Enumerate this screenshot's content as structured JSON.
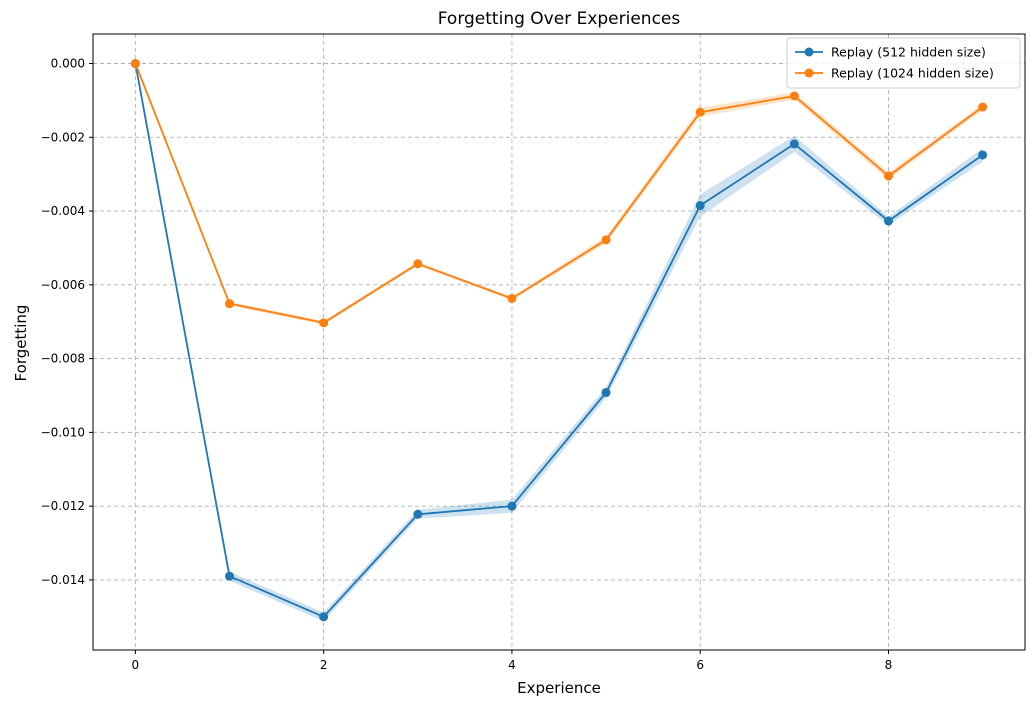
{
  "chart_data": {
    "type": "line",
    "title": "Forgetting Over Experiences",
    "xlabel": "Experience",
    "ylabel": "Forgetting",
    "x": [
      0,
      1,
      2,
      3,
      4,
      5,
      6,
      7,
      8,
      9
    ],
    "xlim": [
      -0.45,
      9.45
    ],
    "ylim": [
      -0.0159,
      0.0008
    ],
    "xticks": [
      0,
      2,
      4,
      6,
      8
    ],
    "xtick_labels": [
      "0",
      "2",
      "4",
      "6",
      "8"
    ],
    "yticks": [
      0,
      -0.002,
      -0.004,
      -0.006,
      -0.008,
      -0.01,
      -0.012,
      -0.014
    ],
    "ytick_labels": [
      "0.000",
      "−0.002",
      "−0.004",
      "−0.006",
      "−0.008",
      "−0.010",
      "−0.012",
      "−0.014"
    ],
    "grid": true,
    "legend_position": "top-right",
    "series": [
      {
        "name": "Replay (512 hidden size)",
        "color": "#1f77b4",
        "values": [
          0.0,
          -0.0139,
          -0.015,
          -0.01222,
          -0.012,
          -0.00892,
          -0.00385,
          -0.00218,
          -0.00427,
          -0.00248
        ],
        "band": [
          0.0,
          0.00012,
          0.00012,
          0.00012,
          0.00018,
          0.00015,
          0.0003,
          0.00022,
          0.00012,
          0.00018
        ]
      },
      {
        "name": "Replay (1024 hidden size)",
        "color": "#ff7f0e",
        "values": [
          0.0,
          -0.00651,
          -0.00703,
          -0.00543,
          -0.00637,
          -0.00478,
          -0.00132,
          -0.00088,
          -0.00305,
          -0.00118
        ],
        "band": [
          0.0,
          5e-05,
          5e-05,
          5e-05,
          5e-05,
          0.0001,
          0.00012,
          0.0001,
          0.0001,
          8e-05
        ]
      }
    ]
  }
}
